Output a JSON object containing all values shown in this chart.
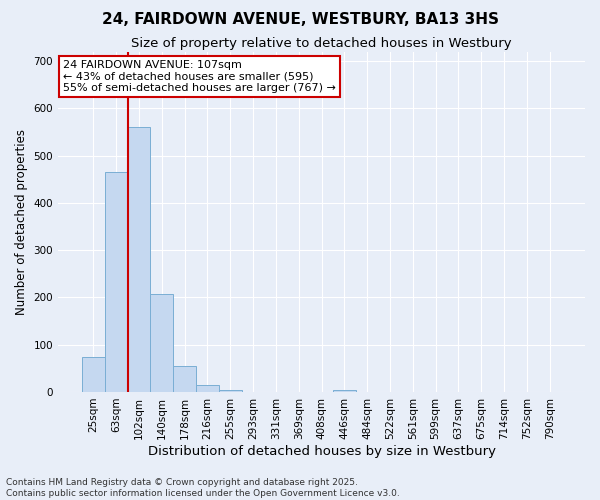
{
  "title": "24, FAIRDOWN AVENUE, WESTBURY, BA13 3HS",
  "subtitle": "Size of property relative to detached houses in Westbury",
  "xlabel": "Distribution of detached houses by size in Westbury",
  "ylabel": "Number of detached properties",
  "footnote1": "Contains HM Land Registry data © Crown copyright and database right 2025.",
  "footnote2": "Contains public sector information licensed under the Open Government Licence v3.0.",
  "categories": [
    "25sqm",
    "63sqm",
    "102sqm",
    "140sqm",
    "178sqm",
    "216sqm",
    "255sqm",
    "293sqm",
    "331sqm",
    "369sqm",
    "408sqm",
    "446sqm",
    "484sqm",
    "522sqm",
    "561sqm",
    "599sqm",
    "637sqm",
    "675sqm",
    "714sqm",
    "752sqm",
    "790sqm"
  ],
  "values": [
    75,
    465,
    560,
    207,
    55,
    15,
    5,
    0,
    0,
    0,
    0,
    5,
    0,
    0,
    0,
    0,
    0,
    0,
    0,
    0,
    0
  ],
  "bar_color": "#c5d8f0",
  "bar_edge_color": "#7aaed4",
  "background_color": "#e8eef8",
  "grid_color": "#ffffff",
  "vline_color": "#cc0000",
  "vline_pos": 1.5,
  "annotation_line1": "24 FAIRDOWN AVENUE: 107sqm",
  "annotation_line2": "← 43% of detached houses are smaller (595)",
  "annotation_line3": "55% of semi-detached houses are larger (767) →",
  "annotation_box_color": "#ffffff",
  "annotation_box_edge": "#cc0000",
  "ylim": [
    0,
    720
  ],
  "yticks": [
    0,
    100,
    200,
    300,
    400,
    500,
    600,
    700
  ],
  "title_fontsize": 11,
  "subtitle_fontsize": 9.5,
  "ylabel_fontsize": 8.5,
  "xlabel_fontsize": 9.5,
  "tick_fontsize": 7.5,
  "annot_fontsize": 8,
  "footnote_fontsize": 6.5
}
